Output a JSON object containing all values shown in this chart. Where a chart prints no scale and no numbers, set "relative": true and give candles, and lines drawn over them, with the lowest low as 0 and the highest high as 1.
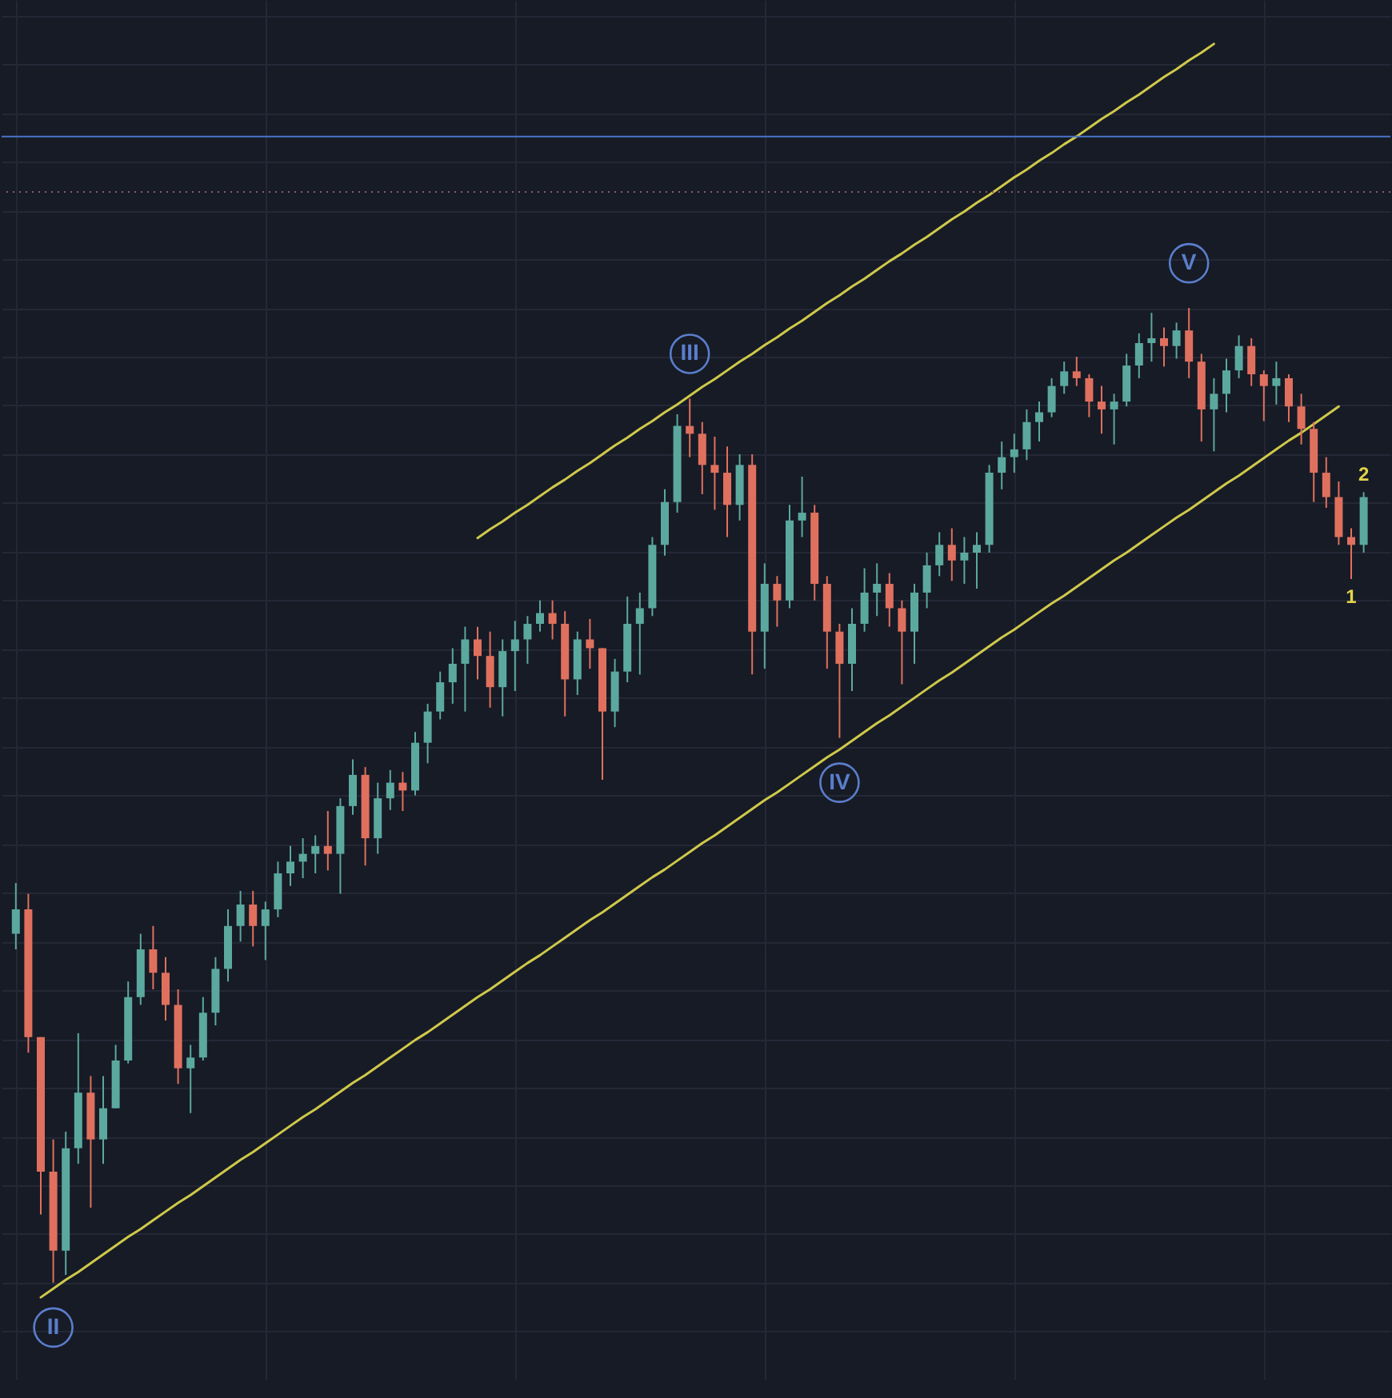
{
  "chart_data": {
    "type": "candlestick",
    "relative": true,
    "grid": true,
    "categories": [
      null,
      null,
      null,
      null,
      null,
      null,
      null,
      null,
      null,
      null,
      null,
      null,
      null,
      null,
      null,
      null,
      null,
      null,
      null,
      null,
      null,
      null,
      null,
      null,
      null,
      null,
      null,
      null,
      null,
      null,
      null,
      null,
      null,
      null,
      null,
      null,
      null,
      null,
      null,
      null,
      null,
      null,
      null,
      null,
      null,
      null,
      null,
      null,
      null,
      null,
      null,
      null,
      null,
      null,
      null,
      null,
      null,
      null,
      null,
      null,
      null,
      null,
      null,
      null,
      null,
      null,
      null,
      null,
      null,
      null,
      null,
      null,
      null,
      null,
      null,
      null,
      null,
      null,
      null,
      null,
      null,
      null,
      null,
      null,
      null,
      null,
      null,
      null,
      null,
      null,
      null,
      null,
      null,
      null,
      null,
      null,
      null,
      null,
      null,
      null,
      null,
      null,
      null,
      null,
      null,
      null,
      null,
      null,
      null
    ],
    "ohlc": [
      [
        0.358,
        0.41,
        0.342,
        0.383
      ],
      [
        0.383,
        0.399,
        0.236,
        0.252
      ],
      [
        0.252,
        0.252,
        0.07,
        0.114
      ],
      [
        0.114,
        0.147,
        0,
        0.033
      ],
      [
        0.033,
        0.155,
        0.008,
        0.138
      ],
      [
        0.138,
        0.256,
        0.122,
        0.195
      ],
      [
        0.195,
        0.212,
        0.077,
        0.147
      ],
      [
        0.147,
        0.212,
        0.122,
        0.179
      ],
      [
        0.179,
        0.244,
        0.179,
        0.228
      ],
      [
        0.228,
        0.309,
        0.225,
        0.293
      ],
      [
        0.293,
        0.358,
        0.285,
        0.342
      ],
      [
        0.342,
        0.366,
        0.301,
        0.318
      ],
      [
        0.318,
        0.334,
        0.269,
        0.285
      ],
      [
        0.285,
        0.301,
        0.204,
        0.22
      ],
      [
        0.22,
        0.244,
        0.174,
        0.231
      ],
      [
        0.231,
        0.293,
        0.228,
        0.277
      ],
      [
        0.277,
        0.334,
        0.264,
        0.322
      ],
      [
        0.322,
        0.383,
        0.309,
        0.366
      ],
      [
        0.366,
        0.402,
        0.35,
        0.388
      ],
      [
        0.388,
        0.402,
        0.345,
        0.366
      ],
      [
        0.366,
        0.391,
        0.331,
        0.383
      ],
      [
        0.383,
        0.432,
        0.375,
        0.42
      ],
      [
        0.42,
        0.448,
        0.407,
        0.432
      ],
      [
        0.432,
        0.456,
        0.415,
        0.44
      ],
      [
        0.44,
        0.459,
        0.42,
        0.448
      ],
      [
        0.448,
        0.484,
        0.423,
        0.44
      ],
      [
        0.44,
        0.497,
        0.399,
        0.489
      ],
      [
        0.489,
        0.537,
        0.48,
        0.521
      ],
      [
        0.521,
        0.529,
        0.428,
        0.456
      ],
      [
        0.456,
        0.513,
        0.44,
        0.497
      ],
      [
        0.497,
        0.526,
        0.485,
        0.513
      ],
      [
        0.513,
        0.524,
        0.484,
        0.505
      ],
      [
        0.505,
        0.565,
        0.5,
        0.554
      ],
      [
        0.554,
        0.594,
        0.533,
        0.586
      ],
      [
        0.586,
        0.627,
        0.578,
        0.616
      ],
      [
        0.616,
        0.651,
        0.594,
        0.635
      ],
      [
        0.635,
        0.673,
        0.586,
        0.66
      ],
      [
        0.66,
        0.673,
        0.619,
        0.643
      ],
      [
        0.643,
        0.668,
        0.59,
        0.611
      ],
      [
        0.611,
        0.66,
        0.581,
        0.648
      ],
      [
        0.648,
        0.679,
        0.607,
        0.66
      ],
      [
        0.66,
        0.684,
        0.635,
        0.676
      ],
      [
        0.676,
        0.7,
        0.668,
        0.687
      ],
      [
        0.687,
        0.7,
        0.66,
        0.676
      ],
      [
        0.676,
        0.689,
        0.581,
        0.619
      ],
      [
        0.619,
        0.668,
        0.603,
        0.66
      ],
      [
        0.66,
        0.681,
        0.63,
        0.651
      ],
      [
        0.651,
        0.651,
        0.516,
        0.586
      ],
      [
        0.586,
        0.64,
        0.57,
        0.627
      ],
      [
        0.627,
        0.704,
        0.616,
        0.676
      ],
      [
        0.676,
        0.708,
        0.624,
        0.692
      ],
      [
        0.692,
        0.765,
        0.684,
        0.757
      ],
      [
        0.757,
        0.814,
        0.746,
        0.801
      ],
      [
        0.801,
        0.891,
        0.79,
        0.879
      ],
      [
        0.879,
        0.907,
        0.847,
        0.871
      ],
      [
        0.871,
        0.883,
        0.809,
        0.839
      ],
      [
        0.839,
        0.868,
        0.793,
        0.831
      ],
      [
        0.831,
        0.858,
        0.765,
        0.798
      ],
      [
        0.798,
        0.85,
        0.782,
        0.839
      ],
      [
        0.839,
        0.85,
        0.624,
        0.668
      ],
      [
        0.668,
        0.738,
        0.63,
        0.717
      ],
      [
        0.717,
        0.725,
        0.673,
        0.7
      ],
      [
        0.7,
        0.798,
        0.692,
        0.782
      ],
      [
        0.782,
        0.827,
        0.765,
        0.79
      ],
      [
        0.79,
        0.798,
        0.7,
        0.717
      ],
      [
        0.717,
        0.725,
        0.63,
        0.668
      ],
      [
        0.668,
        0.676,
        0.559,
        0.635
      ],
      [
        0.635,
        0.692,
        0.607,
        0.676
      ],
      [
        0.676,
        0.733,
        0.668,
        0.708
      ],
      [
        0.708,
        0.738,
        0.684,
        0.717
      ],
      [
        0.717,
        0.728,
        0.673,
        0.692
      ],
      [
        0.692,
        0.7,
        0.614,
        0.668
      ],
      [
        0.668,
        0.717,
        0.635,
        0.708
      ],
      [
        0.708,
        0.749,
        0.692,
        0.736
      ],
      [
        0.736,
        0.77,
        0.725,
        0.757
      ],
      [
        0.757,
        0.774,
        0.72,
        0.741
      ],
      [
        0.741,
        0.765,
        0.717,
        0.749
      ],
      [
        0.749,
        0.77,
        0.712,
        0.757
      ],
      [
        0.757,
        0.839,
        0.749,
        0.831
      ],
      [
        0.831,
        0.863,
        0.814,
        0.847
      ],
      [
        0.847,
        0.871,
        0.831,
        0.855
      ],
      [
        0.855,
        0.896,
        0.844,
        0.883
      ],
      [
        0.883,
        0.904,
        0.863,
        0.893
      ],
      [
        0.893,
        0.928,
        0.888,
        0.92
      ],
      [
        0.92,
        0.945,
        0.912,
        0.935
      ],
      [
        0.935,
        0.95,
        0.92,
        0.928
      ],
      [
        0.928,
        0.932,
        0.888,
        0.904
      ],
      [
        0.904,
        0.92,
        0.871,
        0.896
      ],
      [
        0.896,
        0.912,
        0.86,
        0.904
      ],
      [
        0.904,
        0.953,
        0.899,
        0.941
      ],
      [
        0.941,
        0.974,
        0.928,
        0.964
      ],
      [
        0.964,
        0.995,
        0.945,
        0.969
      ],
      [
        0.969,
        0.98,
        0.94,
        0.961
      ],
      [
        0.961,
        0.985,
        0.948,
        0.977
      ],
      [
        0.977,
        1,
        0.928,
        0.945
      ],
      [
        0.945,
        0.953,
        0.863,
        0.896
      ],
      [
        0.896,
        0.928,
        0.853,
        0.912
      ],
      [
        0.912,
        0.948,
        0.893,
        0.936
      ],
      [
        0.936,
        0.972,
        0.928,
        0.961
      ],
      [
        0.961,
        0.969,
        0.92,
        0.932
      ],
      [
        0.932,
        0.936,
        0.884,
        0.92
      ],
      [
        0.92,
        0.945,
        0.901,
        0.928
      ],
      [
        0.928,
        0.932,
        0.883,
        0.899
      ],
      [
        0.899,
        0.912,
        0.86,
        0.876
      ],
      [
        0.876,
        0.883,
        0.801,
        0.831
      ],
      [
        0.831,
        0.847,
        0.795,
        0.806
      ],
      [
        0.806,
        0.822,
        0.757,
        0.765
      ],
      [
        0.765,
        0.774,
        0.722,
        0.757
      ],
      [
        0.757,
        0.811,
        0.749,
        0.806
      ]
    ],
    "colors": [
      "#5ba89f",
      "#e0705e",
      "#e0705e",
      "#e0705e",
      "#5ba89f",
      "#5ba89f",
      "#e0705e",
      "#5ba89f",
      "#5ba89f",
      "#5ba89f",
      "#5ba89f",
      "#e0705e",
      "#e0705e",
      "#e0705e",
      "#5ba89f",
      "#5ba89f",
      "#5ba89f",
      "#5ba89f",
      "#5ba89f",
      "#e0705e",
      "#5ba89f",
      "#5ba89f",
      "#5ba89f",
      "#5ba89f",
      "#5ba89f",
      "#e0705e",
      "#5ba89f",
      "#5ba89f",
      "#e0705e",
      "#5ba89f",
      "#5ba89f",
      "#e0705e",
      "#5ba89f",
      "#5ba89f",
      "#5ba89f",
      "#5ba89f",
      "#5ba89f",
      "#e0705e",
      "#e0705e",
      "#5ba89f",
      "#5ba89f",
      "#5ba89f",
      "#5ba89f",
      "#e0705e",
      "#e0705e",
      "#5ba89f",
      "#e0705e",
      "#e0705e",
      "#5ba89f",
      "#5ba89f",
      "#5ba89f",
      "#5ba89f",
      "#5ba89f",
      "#5ba89f",
      "#e0705e",
      "#e0705e",
      "#e0705e",
      "#e0705e",
      "#5ba89f",
      "#e0705e",
      "#5ba89f",
      "#e0705e",
      "#5ba89f",
      "#5ba89f",
      "#e0705e",
      "#e0705e",
      "#e0705e",
      "#5ba89f",
      "#5ba89f",
      "#5ba89f",
      "#e0705e",
      "#e0705e",
      "#5ba89f",
      "#5ba89f",
      "#5ba89f",
      "#e0705e",
      "#5ba89f",
      "#5ba89f",
      "#5ba89f",
      "#5ba89f",
      "#5ba89f",
      "#5ba89f",
      "#5ba89f",
      "#5ba89f",
      "#5ba89f",
      "#e0705e",
      "#e0705e",
      "#e0705e",
      "#5ba89f",
      "#5ba89f",
      "#5ba89f",
      "#5ba89f",
      "#e0705e",
      "#5ba89f",
      "#e0705e",
      "#e0705e",
      "#5ba89f",
      "#5ba89f",
      "#5ba89f",
      "#e0705e",
      "#e0705e",
      "#5ba89f",
      "#e0705e",
      "#e0705e",
      "#e0705e",
      "#e0705e",
      "#e0705e",
      "#e0705e",
      "#5ba89f"
    ],
    "series": [
      {
        "type": "line",
        "color": "#cfc94a",
        "values": [
          null,
          null,
          null,
          null,
          null,
          null,
          null,
          null,
          null,
          null,
          null,
          null,
          null,
          null,
          null,
          null,
          null,
          null,
          null,
          null,
          null,
          null,
          null,
          null,
          null,
          null,
          null,
          null,
          null,
          null,
          null,
          null,
          null,
          null,
          null,
          null,
          null,
          0.764,
          0.773,
          0.781,
          0.79,
          0.798,
          0.807,
          0.816,
          0.824,
          0.833,
          0.841,
          0.85,
          0.859,
          0.867,
          0.876,
          0.884,
          0.893,
          0.901,
          0.91,
          0.919,
          0.927,
          0.936,
          0.945,
          0.953,
          0.962,
          0.97,
          0.979,
          0.987,
          0.996,
          1.005,
          1.013,
          1.022,
          1.03,
          1.039,
          1.048,
          1.056,
          1.065,
          1.073,
          1.082,
          1.091,
          1.099,
          1.108,
          1.116,
          1.125,
          1.134,
          1.142,
          1.151,
          1.159,
          1.168,
          1.176,
          1.185,
          1.194,
          1.202,
          1.211,
          1.219,
          1.228,
          1.237,
          1.245,
          1.254,
          1.262,
          1.271,
          null,
          null,
          null,
          null,
          null,
          null,
          null,
          null,
          null,
          null,
          null,
          null
        ]
      },
      {
        "type": "line",
        "color": "#cfc94a",
        "values": [
          null,
          null,
          -0.015,
          -0.006,
          0.003,
          0.011,
          0.02,
          0.029,
          0.038,
          0.047,
          0.055,
          0.064,
          0.073,
          0.082,
          0.09,
          0.099,
          0.108,
          0.117,
          0.126,
          0.134,
          0.143,
          0.152,
          0.161,
          0.17,
          0.178,
          0.187,
          0.196,
          0.205,
          0.213,
          0.222,
          0.231,
          0.24,
          0.249,
          0.257,
          0.266,
          0.275,
          0.284,
          0.293,
          0.301,
          0.31,
          0.319,
          0.328,
          0.336,
          0.345,
          0.354,
          0.363,
          0.372,
          0.38,
          0.389,
          0.398,
          0.407,
          0.416,
          0.424,
          0.433,
          0.442,
          0.451,
          0.459,
          0.468,
          0.477,
          0.486,
          0.495,
          0.503,
          0.512,
          0.521,
          0.53,
          0.539,
          0.547,
          0.556,
          0.565,
          0.574,
          0.582,
          0.591,
          0.6,
          0.609,
          0.618,
          0.626,
          0.635,
          0.644,
          0.653,
          0.662,
          0.67,
          0.679,
          0.688,
          0.697,
          0.705,
          0.714,
          0.723,
          0.732,
          0.741,
          0.749,
          0.758,
          0.767,
          0.776,
          0.785,
          0.793,
          0.802,
          0.811,
          0.82,
          0.828,
          0.837,
          0.846,
          0.855,
          0.864,
          0.872,
          0.881,
          0.89,
          0.899,
          null,
          null
        ]
      }
    ],
    "ref_lines": [
      {
        "axis": "y",
        "value": 1.176,
        "color": "#4a74c9",
        "line_style": "solid"
      },
      {
        "axis": "y",
        "value": 1.119,
        "color": "#8c5c62",
        "line_style": "dotted"
      }
    ],
    "annotations": [
      {
        "text": "II",
        "y": 0
      },
      {
        "text": "III",
        "y": 0.907
      },
      {
        "text": "IV",
        "y": 0.559
      },
      {
        "text": "V",
        "y": 1
      },
      {
        "text": "2",
        "y": 0.811
      },
      {
        "text": "1",
        "y": 0.722
      }
    ]
  }
}
